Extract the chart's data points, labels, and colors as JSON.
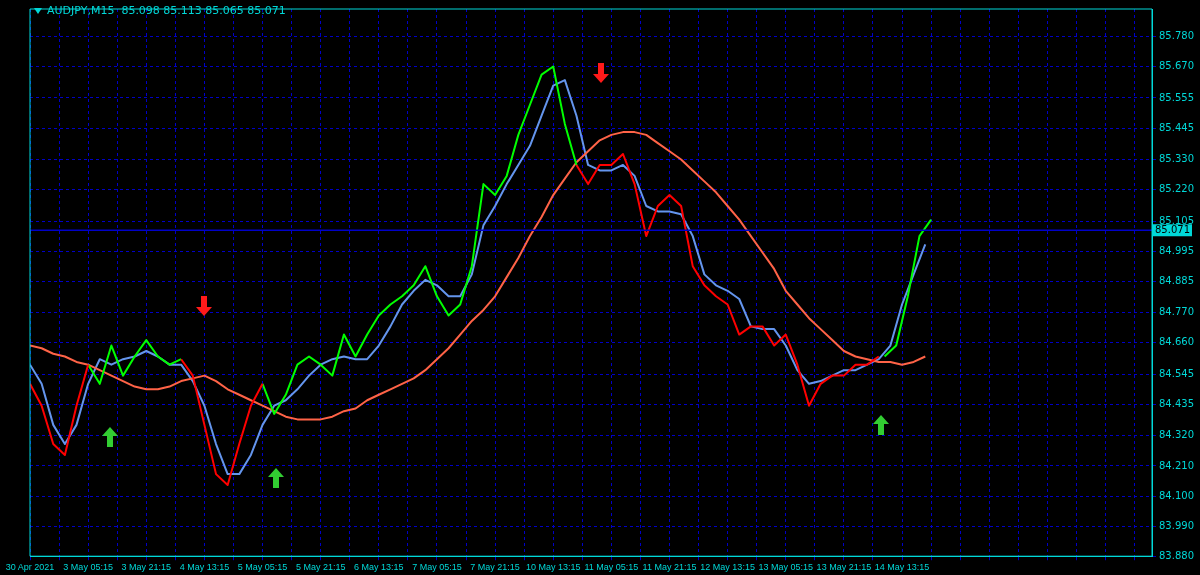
{
  "chart_data": {
    "type": "line",
    "title": "AUDJPY,M15  85.098 85.113 85.065 85.071",
    "categories": [
      "30 Apr 2021",
      null,
      null,
      null,
      null,
      null,
      null,
      null,
      null,
      null,
      "3 May 05:15",
      null,
      null,
      null,
      null,
      null,
      null,
      null,
      null,
      null,
      "3 May 21:15",
      null,
      null,
      null,
      null,
      null,
      null,
      null,
      null,
      null,
      "4 May 13:15",
      null,
      null,
      null,
      null,
      null,
      null,
      null,
      null,
      null,
      "5 May 05:15",
      null,
      null,
      null,
      null,
      null,
      null,
      null,
      null,
      null,
      "5 May 21:15",
      null,
      null,
      null,
      null,
      null,
      null,
      null,
      null,
      null,
      "6 May 13:15",
      null,
      null,
      null,
      null,
      null,
      null,
      null,
      null,
      null,
      "7 May 05:15",
      null,
      null,
      null,
      null,
      null,
      null,
      null,
      null,
      null,
      "7 May 21:15",
      null,
      null,
      null,
      null,
      null,
      null,
      null,
      null,
      null,
      "10 May 13:15",
      null,
      null,
      null,
      null,
      null,
      null,
      null,
      null,
      null,
      "11 May 05:15",
      null,
      null,
      null,
      null,
      null,
      null,
      null,
      null,
      null,
      "11 May 21:15",
      null,
      null,
      null,
      null,
      null,
      null,
      null,
      null,
      null,
      "12 May 13:15",
      null,
      null,
      null,
      null,
      null,
      null,
      null,
      null,
      null,
      "13 May 05:15",
      null,
      null,
      null,
      null,
      null,
      null,
      null,
      null,
      null,
      "13 May 21:15",
      null,
      null,
      null,
      null,
      null,
      null,
      null,
      null,
      null,
      "14 May 13:15",
      null,
      null,
      null,
      null,
      null,
      null,
      null,
      null,
      null,
      null,
      null,
      null,
      null,
      null,
      null,
      null,
      null,
      null,
      null,
      null,
      null,
      null,
      null,
      null,
      null,
      null,
      null,
      null,
      null,
      null,
      null,
      null,
      null,
      null,
      null,
      null,
      null,
      null,
      null,
      null,
      null,
      null,
      null
    ],
    "series": [
      {
        "color": "#ff0000",
        "values": [
          84.51,
          null,
          84.43,
          null,
          84.29,
          null,
          84.25,
          null,
          84.43,
          null,
          84.58,
          null,
          null,
          null,
          null,
          null,
          null,
          null,
          null,
          null,
          null,
          null,
          null,
          null,
          null,
          null,
          84.6,
          null,
          84.54,
          null,
          84.36,
          null,
          84.18,
          null,
          84.14,
          null,
          84.29,
          null,
          84.43,
          null,
          84.51,
          null,
          null,
          null,
          null,
          null,
          null,
          null,
          null,
          null,
          null,
          null,
          null,
          null,
          null,
          null,
          null,
          null,
          null,
          null,
          null,
          null,
          null,
          null,
          null,
          null,
          null,
          null,
          null,
          null,
          null,
          null,
          null,
          null,
          null,
          null,
          null,
          null,
          null,
          null,
          null,
          null,
          null,
          null,
          null,
          null,
          null,
          null,
          null,
          null,
          null,
          null,
          null,
          null,
          85.31,
          null,
          85.24,
          null,
          85.31,
          null,
          85.31,
          null,
          85.35,
          null,
          85.24,
          null,
          85.05,
          null,
          85.16,
          null,
          85.2,
          null,
          85.16,
          null,
          84.94,
          null,
          84.87,
          null,
          84.83,
          null,
          84.8,
          null,
          84.69,
          null,
          84.72,
          null,
          84.72,
          null,
          84.65,
          null,
          84.69,
          null,
          84.58,
          null,
          84.43,
          null,
          84.51,
          null,
          84.54,
          null,
          84.54,
          null,
          84.58,
          null,
          84.58,
          null,
          84.61,
          null,
          null,
          null,
          null,
          null,
          null,
          null,
          null,
          null,
          null,
          null,
          null,
          null,
          null,
          null,
          null,
          null,
          null,
          null,
          null,
          null,
          null,
          null,
          null,
          null,
          null,
          null,
          null,
          null,
          null,
          null,
          null,
          null,
          null,
          null,
          null,
          null,
          null,
          null,
          null,
          null,
          null,
          null,
          null,
          null,
          null,
          null
        ]
      },
      {
        "color": "#00ff00",
        "values": [
          null,
          null,
          null,
          null,
          null,
          null,
          null,
          null,
          null,
          null,
          84.58,
          null,
          84.51,
          null,
          84.65,
          null,
          84.54,
          null,
          84.61,
          null,
          84.67,
          null,
          84.61,
          null,
          84.58,
          null,
          84.6,
          null,
          null,
          null,
          null,
          null,
          null,
          null,
          null,
          null,
          null,
          null,
          null,
          null,
          84.51,
          null,
          84.4,
          null,
          84.47,
          null,
          84.58,
          null,
          84.61,
          null,
          84.58,
          null,
          84.54,
          null,
          84.69,
          null,
          84.61,
          null,
          84.69,
          null,
          84.76,
          null,
          84.8,
          null,
          84.83,
          null,
          84.87,
          null,
          84.94,
          null,
          84.83,
          null,
          84.76,
          null,
          84.8,
          null,
          84.94,
          null,
          85.24,
          null,
          85.2,
          null,
          85.27,
          null,
          85.42,
          null,
          85.53,
          null,
          85.64,
          null,
          85.67,
          null,
          85.46,
          null,
          85.31,
          null,
          null,
          null,
          null,
          null,
          null,
          null,
          null,
          null,
          null,
          null,
          null,
          null,
          null,
          null,
          null,
          null,
          null,
          null,
          null,
          null,
          null,
          null,
          null,
          null,
          null,
          null,
          null,
          null,
          null,
          null,
          null,
          null,
          null,
          null,
          null,
          null,
          null,
          null,
          null,
          null,
          null,
          null,
          null,
          null,
          null,
          null,
          null,
          null,
          null,
          null,
          null,
          84.61,
          null,
          84.65,
          null,
          84.83,
          null,
          85.05,
          null,
          85.11,
          null,
          null,
          null,
          null,
          null,
          null,
          null,
          null,
          null,
          null,
          null,
          null,
          null,
          null,
          null,
          null,
          null,
          null,
          null,
          null,
          null,
          null,
          null,
          null,
          null,
          null,
          null,
          null,
          null,
          null,
          null,
          null,
          null,
          null,
          null,
          null,
          null,
          null
        ]
      },
      {
        "color": "#ff6347",
        "values": [
          84.65,
          null,
          84.64,
          null,
          84.62,
          null,
          84.61,
          null,
          84.59,
          null,
          84.58,
          null,
          84.56,
          null,
          84.54,
          null,
          84.52,
          null,
          84.5,
          null,
          84.49,
          null,
          84.49,
          null,
          84.5,
          null,
          84.52,
          null,
          84.53,
          null,
          84.54,
          null,
          84.52,
          null,
          84.49,
          null,
          84.47,
          null,
          84.45,
          null,
          84.43,
          null,
          84.41,
          null,
          84.39,
          null,
          84.38,
          null,
          84.38,
          null,
          84.38,
          null,
          84.39,
          null,
          84.41,
          null,
          84.42,
          null,
          84.45,
          null,
          84.47,
          null,
          84.49,
          null,
          84.51,
          null,
          84.53,
          null,
          84.56,
          null,
          84.6,
          null,
          84.64,
          null,
          84.69,
          null,
          84.74,
          null,
          84.78,
          null,
          84.83,
          null,
          84.9,
          null,
          84.97,
          null,
          85.05,
          null,
          85.12,
          null,
          85.2,
          null,
          85.26,
          null,
          85.32,
          null,
          85.36,
          null,
          85.4,
          null,
          85.42,
          null,
          85.43,
          null,
          85.43,
          null,
          85.42,
          null,
          85.39,
          null,
          85.36,
          null,
          85.33,
          null,
          85.29,
          null,
          85.25,
          null,
          85.21,
          null,
          85.16,
          null,
          85.11,
          null,
          85.05,
          null,
          84.99,
          null,
          84.93,
          null,
          84.85,
          null,
          84.8,
          null,
          84.75,
          null,
          84.71,
          null,
          84.67,
          null,
          84.63,
          null,
          84.61,
          null,
          84.6,
          null,
          84.59,
          null,
          84.59,
          null,
          84.58,
          null,
          84.59,
          null,
          84.61,
          null,
          null,
          null,
          null,
          null,
          null,
          null,
          null,
          null,
          null,
          null,
          null,
          null,
          null,
          null,
          null,
          null,
          null,
          null,
          null,
          null,
          null,
          null,
          null,
          null,
          null,
          null,
          null,
          null,
          null,
          null,
          null,
          null,
          null,
          null,
          null,
          null,
          null,
          null
        ]
      },
      {
        "color": "#6495ed",
        "values": [
          84.58,
          null,
          84.51,
          null,
          84.36,
          null,
          84.29,
          null,
          84.36,
          null,
          84.51,
          null,
          84.6,
          null,
          84.58,
          null,
          84.6,
          null,
          84.61,
          null,
          84.63,
          null,
          84.61,
          null,
          84.58,
          null,
          84.58,
          null,
          84.52,
          null,
          84.43,
          null,
          84.29,
          null,
          84.18,
          null,
          84.18,
          null,
          84.25,
          null,
          84.36,
          null,
          84.43,
          null,
          84.45,
          null,
          84.49,
          null,
          84.54,
          null,
          84.58,
          null,
          84.6,
          null,
          84.61,
          null,
          84.6,
          null,
          84.6,
          null,
          84.65,
          null,
          84.72,
          null,
          84.8,
          null,
          84.85,
          null,
          84.89,
          null,
          84.87,
          null,
          84.83,
          null,
          84.83,
          null,
          84.91,
          null,
          85.09,
          null,
          85.16,
          null,
          85.24,
          null,
          85.31,
          null,
          85.38,
          null,
          85.49,
          null,
          85.6,
          null,
          85.62,
          null,
          85.49,
          null,
          85.31,
          null,
          85.29,
          null,
          85.29,
          null,
          85.31,
          null,
          85.27,
          null,
          85.16,
          null,
          85.14,
          null,
          85.14,
          null,
          85.13,
          null,
          85.05,
          null,
          84.91,
          null,
          84.87,
          null,
          84.85,
          null,
          84.82,
          null,
          84.72,
          null,
          84.71,
          null,
          84.71,
          null,
          84.65,
          null,
          84.56,
          null,
          84.51,
          null,
          84.52,
          null,
          84.54,
          null,
          84.56,
          null,
          84.56,
          null,
          84.58,
          null,
          84.6,
          null,
          84.65,
          null,
          84.8,
          null,
          84.91,
          null,
          85.02,
          null,
          null,
          null,
          null,
          null,
          null,
          null,
          null,
          null,
          null,
          null,
          null,
          null,
          null,
          null,
          null,
          null,
          null,
          null,
          null,
          null,
          null,
          null,
          null,
          null,
          null,
          null,
          null,
          null,
          null,
          null,
          null,
          null,
          null,
          null,
          null,
          null,
          null,
          null
        ]
      }
    ],
    "ylim": [
      83.88,
      85.88
    ],
    "yticks": [
      {
        "value": 83.88,
        "label": "83.880"
      },
      {
        "value": 83.99,
        "label": "83.990"
      },
      {
        "value": 84.1,
        "label": "84.100"
      },
      {
        "value": 84.21,
        "label": "84.210"
      },
      {
        "value": 84.32,
        "label": "84.320"
      },
      {
        "value": 84.435,
        "label": "84.435"
      },
      {
        "value": 84.545,
        "label": "84.545"
      },
      {
        "value": 84.66,
        "label": "84.660"
      },
      {
        "value": 84.77,
        "label": "84.770"
      },
      {
        "value": 84.885,
        "label": "84.885"
      },
      {
        "value": 84.995,
        "label": "84.995"
      },
      {
        "value": 85.105,
        "label": "85.105"
      },
      {
        "value": 85.22,
        "label": "85.220"
      },
      {
        "value": 85.33,
        "label": "85.330"
      },
      {
        "value": 85.445,
        "label": "85.445"
      },
      {
        "value": 85.555,
        "label": "85.555"
      },
      {
        "value": 85.67,
        "label": "85.670"
      },
      {
        "value": 85.78,
        "label": "85.780"
      }
    ],
    "ref_lines": [
      {
        "axis": "y",
        "value": 85.071,
        "label": "85.071",
        "color": "#0000c8"
      }
    ],
    "grid": true,
    "marker": "none",
    "line_style": "solid"
  }
}
